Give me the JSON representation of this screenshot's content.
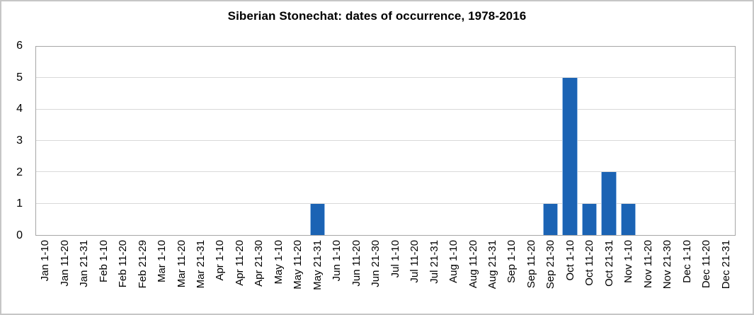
{
  "chart_data": {
    "type": "bar",
    "title": "Siberian Stonechat: dates of occurrence, 1978-2016",
    "categories": [
      "Jan 1-10",
      "Jan 11-20",
      "Jan 21-31",
      "Feb 1-10",
      "Feb 11-20",
      "Feb 21-29",
      "Mar 1-10",
      "Mar 11-20",
      "Mar 21-31",
      "Apr 1-10",
      "Apr 11-20",
      "Apr 21-30",
      "May 1-10",
      "May 11-20",
      "May 21-31",
      "Jun 1-10",
      "Jun 11-20",
      "Jun 21-30",
      "Jul 1-10",
      "Jul 11-20",
      "Jul 21-31",
      "Aug 1-10",
      "Aug 11-20",
      "Aug 21-31",
      "Sep 1-10",
      "Sep 11-20",
      "Sep 21-30",
      "Oct 1-10",
      "Oct 11-20",
      "Oct 21-31",
      "Nov 1-10",
      "Nov 11-20",
      "Nov 21-30",
      "Dec 1-10",
      "Dec 11-20",
      "Dec 21-31"
    ],
    "values": [
      0,
      0,
      0,
      0,
      0,
      0,
      0,
      0,
      0,
      0,
      0,
      0,
      0,
      0,
      1,
      0,
      0,
      0,
      0,
      0,
      0,
      0,
      0,
      0,
      0,
      0,
      1,
      5,
      1,
      2,
      1,
      0,
      0,
      0,
      0,
      0
    ],
    "xlabel": "",
    "ylabel": "",
    "ylim": [
      0,
      6
    ],
    "yticks": [
      0,
      1,
      2,
      3,
      4,
      5,
      6
    ],
    "grid": "horizontal",
    "legend": "none",
    "bar_color": "#1b63b4",
    "bar_edge_color": "#9dc0e8",
    "gridline_color": "#d9d9d9",
    "plot_border_color": "#a6a6a6"
  }
}
